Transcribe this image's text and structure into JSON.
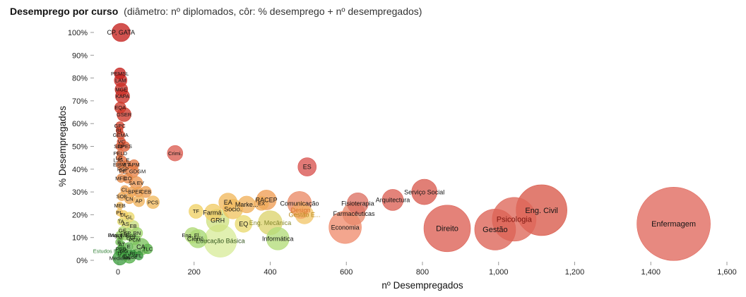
{
  "title": {
    "main": "Desemprego por curso",
    "subtitle": "(diâmetro: nº diplomados, côr: % desemprego + nº desempregados)"
  },
  "chart_data": {
    "type": "scatter",
    "variant": "bubble",
    "title": "Desemprego por curso",
    "xlabel": "nº Desempregados",
    "ylabel": "% Desempregados",
    "xlim": [
      0,
      1600
    ],
    "ylim": [
      0,
      100
    ],
    "grid": false,
    "x_ticks": [
      {
        "v": 0,
        "label": "0"
      },
      {
        "v": 200,
        "label": "200"
      },
      {
        "v": 400,
        "label": "400"
      },
      {
        "v": 600,
        "label": "600"
      },
      {
        "v": 800,
        "label": "800"
      },
      {
        "v": 1000,
        "label": "1,000"
      },
      {
        "v": 1200,
        "label": "1,200"
      },
      {
        "v": 1400,
        "label": "1,400"
      },
      {
        "v": 1600,
        "label": "1,600"
      }
    ],
    "y_ticks": [
      {
        "v": 0,
        "label": "0%"
      },
      {
        "v": 10,
        "label": "10%"
      },
      {
        "v": 20,
        "label": "20%"
      },
      {
        "v": 30,
        "label": "30%"
      },
      {
        "v": 40,
        "label": "40%"
      },
      {
        "v": 50,
        "label": "50%"
      },
      {
        "v": 60,
        "label": "60%"
      },
      {
        "v": 70,
        "label": "70%"
      },
      {
        "v": 80,
        "label": "80%"
      },
      {
        "v": 90,
        "label": "90%"
      },
      {
        "v": 100,
        "label": "100%"
      }
    ],
    "bubbles": [
      {
        "label": "CP, GATA",
        "x": 8,
        "y": 100,
        "r": 13,
        "color": "#c5211e"
      },
      {
        "label": "PEMSL",
        "x": 5,
        "y": 82,
        "r": 8,
        "color": "#c5211e"
      },
      {
        "label": "LAM",
        "x": 7,
        "y": 79,
        "r": 9,
        "color": "#c72823"
      },
      {
        "label": "MGE",
        "x": 9,
        "y": 75,
        "r": 9,
        "color": "#ca2f26"
      },
      {
        "label": "KAPA",
        "x": 12,
        "y": 72,
        "r": 10,
        "color": "#ca2f26"
      },
      {
        "label": "EQA",
        "x": 6,
        "y": 67,
        "r": 8,
        "color": "#ce392a"
      },
      {
        "label": "GSER",
        "x": 16,
        "y": 64,
        "r": 10,
        "color": "#ce392a"
      },
      {
        "label": "GPC",
        "x": 5,
        "y": 59,
        "r": 6,
        "color": "#d3442e"
      },
      {
        "label": "BL",
        "x": 4,
        "y": 57,
        "r": 5,
        "color": "#d3442e"
      },
      {
        "label": "GEMA",
        "x": 7,
        "y": 55,
        "r": 6,
        "color": "#d75032"
      },
      {
        "label": "VC",
        "x": 9,
        "y": 52,
        "r": 6,
        "color": "#d75032"
      },
      {
        "label": "SBP",
        "x": 3,
        "y": 50,
        "r": 5,
        "color": "#db5c36"
      },
      {
        "label": "CPES",
        "x": 18,
        "y": 50,
        "r": 7,
        "color": "#db5c36"
      },
      {
        "label": "PELD",
        "x": 6,
        "y": 47,
        "r": 5,
        "color": "#de663a"
      },
      {
        "label": "Crimi.",
        "x": 150,
        "y": 47,
        "r": 11,
        "color": "#db5c51"
      },
      {
        "label": "LG",
        "x": 3,
        "y": 45,
        "r": 4,
        "color": "#e06e3e"
      },
      {
        "label": "LJG, E.",
        "x": 11,
        "y": 44,
        "r": 6,
        "color": "#e06e3e"
      },
      {
        "label": "EIBM",
        "x": 4,
        "y": 42,
        "r": 5,
        "color": "#e27742"
      },
      {
        "label": "ET",
        "x": 23,
        "y": 42,
        "r": 6,
        "color": "#e27742"
      },
      {
        "label": "APM",
        "x": 42,
        "y": 42,
        "r": 7,
        "color": "#e27742"
      },
      {
        "label": "ES",
        "x": 497,
        "y": 41,
        "r": 13,
        "color": "#d9534f"
      },
      {
        "label": "RGP",
        "x": 13,
        "y": 40,
        "r": 6,
        "color": "#e58147"
      },
      {
        "label": "PE, GDGM",
        "x": 38,
        "y": 39,
        "r": 9,
        "color": "#e58147"
      },
      {
        "label": "MFD",
        "x": 8,
        "y": 36,
        "r": 6,
        "color": "#e88c4b"
      },
      {
        "label": "CO",
        "x": 26,
        "y": 36,
        "r": 7,
        "color": "#e88c4b"
      },
      {
        "label": "SA EV",
        "x": 48,
        "y": 34,
        "r": 9,
        "color": "#ea954f"
      },
      {
        "label": "CL",
        "x": 18,
        "y": 31,
        "r": 6,
        "color": "#eda053"
      },
      {
        "label": "BP",
        "x": 36,
        "y": 30,
        "r": 7,
        "color": "#eda053"
      },
      {
        "label": "EF",
        "x": 54,
        "y": 30,
        "r": 7,
        "color": "#eda053"
      },
      {
        "label": "CEB",
        "x": 73,
        "y": 30,
        "r": 8,
        "color": "#eda053"
      },
      {
        "label": "Serviço Social",
        "x": 805,
        "y": 30,
        "r": 18,
        "color": "#d95b50"
      },
      {
        "label": "SOE",
        "x": 10,
        "y": 28,
        "r": 6,
        "color": "#efab57"
      },
      {
        "label": "CN",
        "x": 30,
        "y": 27,
        "r": 7,
        "color": "#efab57"
      },
      {
        "label": "Arquitectura",
        "x": 722,
        "y": 26.5,
        "r": 15,
        "color": "#db6054"
      },
      {
        "label": "RACEP",
        "x": 390,
        "y": 26.5,
        "r": 14,
        "color": "#ef9d55"
      },
      {
        "label": "AP",
        "x": 55,
        "y": 26,
        "r": 8,
        "color": "#f0b25b"
      },
      {
        "label": "PCS",
        "x": 92,
        "y": 25.5,
        "r": 9,
        "color": "#f0b85e"
      },
      {
        "label": "EA",
        "x": 289,
        "y": 25.5,
        "r": 13,
        "color": "#f1b85e"
      },
      {
        "label": "Comunicação",
        "x": 477,
        "y": 25,
        "r": 17,
        "color": "#ea8a66"
      },
      {
        "label": "Fisioterapia",
        "x": 630,
        "y": 25,
        "r": 15,
        "color": "#dd7163"
      },
      {
        "label": "EX",
        "x": 377,
        "y": 25,
        "r": 10,
        "color": "#f0ab58"
      },
      {
        "label": "Marke...",
        "x": 338,
        "y": 24.5,
        "r": 12,
        "color": "#f1b15c"
      },
      {
        "label": "Socio.",
        "x": 302,
        "y": 22.5,
        "r": 14,
        "color": "#f1c462"
      },
      {
        "label": "Design",
        "x": 480,
        "y": 22,
        "r": 12,
        "color": "#f3a868",
        "label_color": "#d8742c"
      },
      {
        "label": "Eng. Civil",
        "x": 1113,
        "y": 22,
        "r": 36,
        "color": "#d95949"
      },
      {
        "label": "TF",
        "x": 205,
        "y": 21.5,
        "r": 10,
        "color": "#f0d165"
      },
      {
        "label": "Farmá.",
        "x": 250,
        "y": 21,
        "r": 12,
        "color": "#f1cc66"
      },
      {
        "label": "Farmacêuticas",
        "x": 620,
        "y": 20.5,
        "r": 16,
        "color": "#e88a6d"
      },
      {
        "label": "Gestão E...",
        "x": 490,
        "y": 20,
        "r": 13,
        "color": "#f2c66c",
        "label_color": "#b98a1e"
      },
      {
        "label": "Psicologia",
        "x": 1041,
        "y": 18,
        "r": 31,
        "color": "#de6659",
        "label_color": "#7c150e"
      },
      {
        "label": "GRH",
        "x": 262,
        "y": 17.5,
        "r": 16,
        "color": "#cfe282"
      },
      {
        "label": "Eng. Mecânica",
        "x": 400,
        "y": 16.5,
        "r": 17,
        "color": "#dcd46e",
        "label_color": "#87892f"
      },
      {
        "label": "EQ",
        "x": 330,
        "y": 16,
        "r": 12,
        "color": "#e9da6f"
      },
      {
        "label": "Enfermagem",
        "x": 1460,
        "y": 16,
        "r": 52,
        "color": "#e0685c"
      },
      {
        "label": "Economia",
        "x": 597,
        "y": 14.5,
        "r": 23,
        "color": "#f08d6e"
      },
      {
        "label": "Direito",
        "x": 865,
        "y": 14,
        "r": 33,
        "color": "#dc5f53"
      },
      {
        "label": "Gestão",
        "x": 991,
        "y": 13.5,
        "r": 29,
        "color": "#dd6356"
      },
      {
        "label": "Eng. El...",
        "x": 196,
        "y": 11,
        "r": 11,
        "color": "#b0da76"
      },
      {
        "label": "Informática",
        "x": 420,
        "y": 9.5,
        "r": 16,
        "color": "#b4dd7a"
      },
      {
        "label": "Ciênc...",
        "x": 210,
        "y": 9.5,
        "r": 13,
        "color": "#a8d873"
      },
      {
        "label": "Educação Básica",
        "x": 269,
        "y": 8.5,
        "r": 23,
        "color": "#d8ec9b",
        "label_color": "#33551d"
      },
      {
        "label": "CA",
        "x": 60,
        "y": 6,
        "r": 12,
        "color": "#7cc35e"
      },
      {
        "label": "Estudos Básicos Ciên...",
        "x": 8,
        "y": 4,
        "r": 8,
        "color": "#4aa746",
        "label_color": "#2e7d32"
      },
      {
        "label": "Saúde",
        "x": 30,
        "y": 1.5,
        "r": 9,
        "color": "#55b14b"
      },
      {
        "label": "Medicina",
        "x": 5,
        "y": 1,
        "r": 10,
        "color": "#3f9e41"
      },
      {
        "label": "MEB",
        "x": 5,
        "y": 24,
        "r": 5,
        "color": "#f0b85e"
      },
      {
        "label": "PL",
        "x": 4,
        "y": 21,
        "r": 5,
        "color": "#f0c463"
      },
      {
        "label": "DL",
        "x": 15,
        "y": 20,
        "r": 6,
        "color": "#f0d064"
      },
      {
        "label": "GL",
        "x": 30,
        "y": 19,
        "r": 7,
        "color": "#ecd96a"
      },
      {
        "label": "TA",
        "x": 8,
        "y": 17,
        "r": 5,
        "color": "#e3da6e"
      },
      {
        "label": "AS",
        "x": 20,
        "y": 16,
        "r": 6,
        "color": "#d8d96c"
      },
      {
        "label": "EB",
        "x": 40,
        "y": 15,
        "r": 8,
        "color": "#c8dd7c"
      },
      {
        "label": "GE",
        "x": 12,
        "y": 13,
        "r": 6,
        "color": "#b8dc78"
      },
      {
        "label": "FP",
        "x": 25,
        "y": 12,
        "r": 7,
        "color": "#a6d671"
      },
      {
        "label": "RN",
        "x": 50,
        "y": 12,
        "r": 8,
        "color": "#9ed26c"
      },
      {
        "label": "Maint. Fina...",
        "x": 18,
        "y": 11,
        "r": 7,
        "color": "#95cf68"
      },
      {
        "label": "Eng. Flo...",
        "x": 5,
        "y": 11,
        "r": 6,
        "color": "#9ed26c"
      },
      {
        "label": "EGI",
        "x": 34,
        "y": 10,
        "r": 6,
        "color": "#8cc964"
      },
      {
        "label": "M",
        "x": 6,
        "y": 10,
        "r": 5,
        "color": "#8cc964"
      },
      {
        "label": "PCM",
        "x": 44,
        "y": 9,
        "r": 7,
        "color": "#7fc45f"
      },
      {
        "label": "B",
        "x": 3,
        "y": 8,
        "r": 5,
        "color": "#79c05c"
      },
      {
        "label": "AT",
        "x": 10,
        "y": 7,
        "r": 5,
        "color": "#6cba56"
      },
      {
        "label": "E",
        "x": 28,
        "y": 6,
        "r": 6,
        "color": "#61b450"
      },
      {
        "label": "PEB",
        "x": 8,
        "y": 5,
        "r": 5,
        "color": "#55ae4b"
      },
      {
        "label": "GG",
        "x": 16,
        "y": 4,
        "r": 5,
        "color": "#4ca747"
      },
      {
        "label": "TLC",
        "x": 78,
        "y": 5,
        "r": 7,
        "color": "#5fb34f"
      },
      {
        "label": "D",
        "x": 4,
        "y": 3,
        "r": 4,
        "color": "#45a344"
      },
      {
        "label": "PJ",
        "x": 22,
        "y": 2,
        "r": 5,
        "color": "#3f9e41"
      },
      {
        "label": "RL",
        "x": 40,
        "y": 3,
        "r": 5,
        "color": "#3a9a3f"
      },
      {
        "label": "FL",
        "x": 55,
        "y": 2,
        "r": 6,
        "color": "#3a9a3f"
      }
    ]
  }
}
